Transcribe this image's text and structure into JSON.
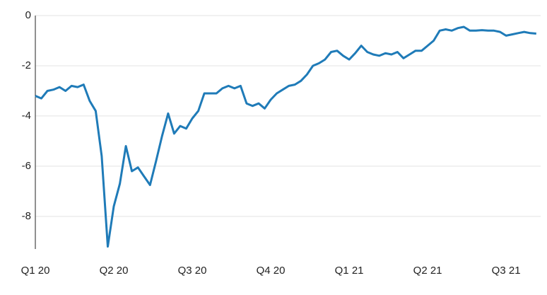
{
  "chart_data": {
    "type": "line",
    "categories": [
      "Q1 20",
      null,
      null,
      null,
      null,
      null,
      null,
      null,
      null,
      null,
      null,
      null,
      null,
      "Q2 20",
      null,
      null,
      null,
      null,
      null,
      null,
      null,
      null,
      null,
      null,
      null,
      null,
      "Q3 20",
      null,
      null,
      null,
      null,
      null,
      null,
      null,
      null,
      null,
      null,
      null,
      null,
      "Q4 20",
      null,
      null,
      null,
      null,
      null,
      null,
      null,
      null,
      null,
      null,
      null,
      null,
      "Q1 21",
      null,
      null,
      null,
      null,
      null,
      null,
      null,
      null,
      null,
      null,
      null,
      null,
      "Q2 21",
      null,
      null,
      null,
      null,
      null,
      null,
      null,
      null,
      null,
      null,
      null,
      null,
      "Q3 21",
      null,
      null,
      null,
      null,
      null
    ],
    "series": [
      {
        "color": "#1f7bb8",
        "values": [
          -3.2,
          -3.3,
          -3.0,
          -2.95,
          -2.85,
          -3.0,
          -2.8,
          -2.85,
          -2.75,
          -3.4,
          -3.8,
          -5.6,
          -9.2,
          -7.6,
          -6.7,
          -5.2,
          -6.2,
          -6.05,
          -6.4,
          -6.75,
          -5.8,
          -4.8,
          -3.9,
          -4.7,
          -4.4,
          -4.5,
          -4.1,
          -3.8,
          -3.1,
          -3.1,
          -3.1,
          -2.9,
          -2.8,
          -2.9,
          -2.8,
          -3.5,
          -3.6,
          -3.5,
          -3.7,
          -3.35,
          -3.1,
          -2.95,
          -2.8,
          -2.75,
          -2.6,
          -2.35,
          -2.0,
          -1.9,
          -1.75,
          -1.45,
          -1.4,
          -1.6,
          -1.75,
          -1.5,
          -1.2,
          -1.45,
          -1.55,
          -1.6,
          -1.5,
          -1.55,
          -1.45,
          -1.7,
          -1.55,
          -1.4,
          -1.4,
          -1.2,
          -1.0,
          -0.6,
          -0.55,
          -0.6,
          -0.5,
          -0.45,
          -0.6,
          -0.6,
          -0.58,
          -0.6,
          -0.6,
          -0.65,
          -0.8,
          -0.75,
          -0.7,
          -0.65,
          -0.7,
          -0.72
        ]
      }
    ],
    "ylim": [
      -9.3,
      0
    ],
    "yticks": [
      0,
      -2,
      -4,
      -6,
      -8
    ],
    "grid": true
  }
}
